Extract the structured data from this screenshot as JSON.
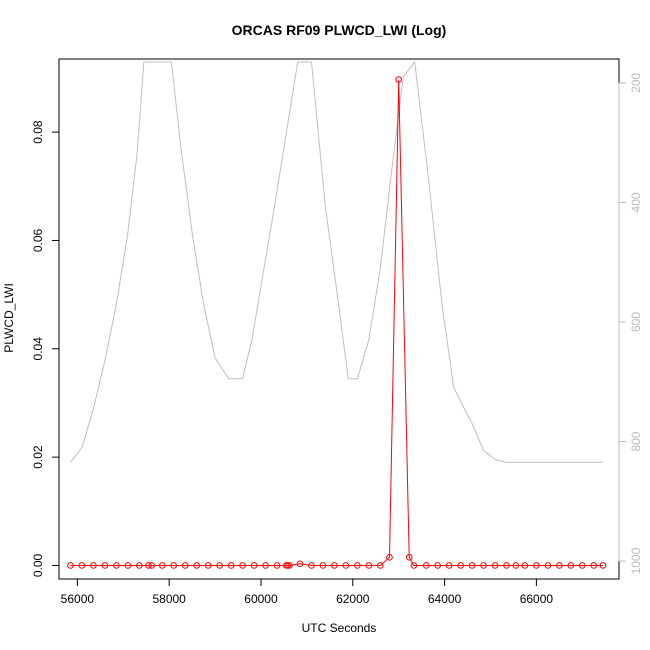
{
  "chart_data": {
    "type": "line",
    "title": "ORCAS RF09 PLWCD_LWI (Log)",
    "xlabel": "UTC Seconds",
    "ylabel": "PLWCD_LWI",
    "xlim": [
      55600,
      67800
    ],
    "ylim": [
      -0.0025,
      0.0935
    ],
    "y2lim": [
      1030,
      160
    ],
    "x_ticks": [
      56000,
      58000,
      60000,
      62000,
      64000,
      66000
    ],
    "y_ticks": [
      0.0,
      0.02,
      0.04,
      0.06,
      0.08
    ],
    "y2_ticks": [
      200,
      400,
      600,
      800,
      1000
    ],
    "grid": false,
    "legend": "none",
    "colors": {
      "primary": "#ff0000",
      "secondary": "#bebebe",
      "axis": "#000000",
      "secondary_axis": "#bbbbbb"
    },
    "series": [
      {
        "role": "primary",
        "axis": "left",
        "style": "line+points",
        "x": [
          55850,
          56100,
          56350,
          56600,
          56850,
          57100,
          57350,
          57550,
          57620,
          57850,
          58100,
          58350,
          58600,
          58850,
          59100,
          59350,
          59600,
          59850,
          60100,
          60350,
          60550,
          60580,
          60620,
          60850,
          61100,
          61350,
          61600,
          61850,
          62100,
          62350,
          62600,
          62800,
          63000,
          63230,
          63330,
          63600,
          63850,
          64100,
          64350,
          64600,
          64850,
          65100,
          65350,
          65550,
          65750,
          66000,
          66250,
          66500,
          66750,
          67000,
          67250,
          67450
        ],
        "y": [
          0,
          0,
          0,
          0,
          0,
          0,
          0,
          0,
          0,
          0,
          0,
          0,
          0,
          0,
          0,
          0,
          0,
          0,
          0,
          0,
          0,
          0,
          0,
          0.0003,
          0,
          0,
          0,
          0,
          0,
          0,
          0,
          0.0015,
          0.0897,
          0.0015,
          0,
          0,
          0,
          0,
          0,
          0,
          0,
          0,
          0,
          0,
          0,
          0,
          0,
          0,
          0,
          0,
          0,
          0
        ]
      },
      {
        "role": "secondary",
        "axis": "right",
        "style": "line",
        "x": [
          55850,
          56100,
          56350,
          56600,
          56850,
          57100,
          57300,
          57450,
          58050,
          58250,
          58500,
          58750,
          59000,
          59300,
          59600,
          59800,
          60000,
          60300,
          60800,
          61100,
          61400,
          61700,
          61900,
          62100,
          62350,
          62600,
          62850,
          63100,
          63350,
          63650,
          63950,
          64200,
          64600,
          64850,
          65100,
          65350,
          67450
        ],
        "y": [
          835,
          810,
          745,
          665,
          570,
          450,
          320,
          165,
          165,
          305,
          450,
          570,
          660,
          695,
          695,
          630,
          540,
          405,
          165,
          165,
          405,
          575,
          695,
          695,
          630,
          510,
          345,
          190,
          165,
          360,
          575,
          710,
          770,
          815,
          830,
          835,
          835
        ]
      }
    ]
  }
}
